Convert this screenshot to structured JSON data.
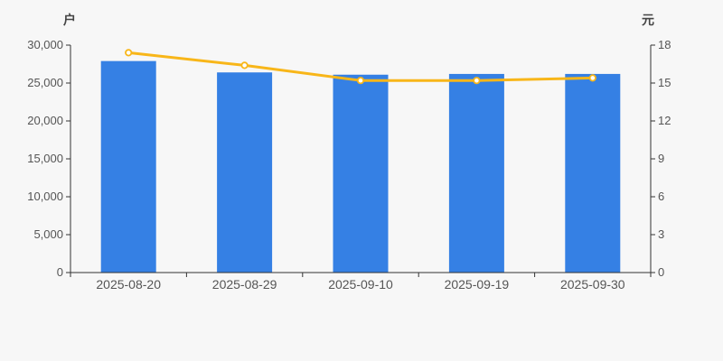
{
  "page": {
    "background": "#f7f7f7"
  },
  "chart_data": {
    "type": "bar",
    "subtype": "bar-with-line-dual-axis",
    "title": "",
    "legend": false,
    "grid": false,
    "categories": [
      "2025-08-20",
      "2025-08-29",
      "2025-09-10",
      "2025-09-19",
      "2025-09-30"
    ],
    "series": [
      {
        "name": "bar-series-left-axis",
        "type": "bar",
        "axis": "left",
        "values": [
          27900,
          26400,
          26100,
          26200,
          26200
        ],
        "color": "#3580e4"
      },
      {
        "name": "line-series-right-axis",
        "type": "line",
        "axis": "right",
        "values": [
          17.4,
          16.4,
          15.2,
          15.2,
          15.4
        ],
        "color": "#f8b619",
        "marker_fill": "#ffffff"
      }
    ],
    "left_axis": {
      "name": "户",
      "min": 0,
      "max": 30000,
      "tick_interval": 5000,
      "tick_labels": [
        "0",
        "5,000",
        "10,000",
        "15,000",
        "20,000",
        "25,000",
        "30,000"
      ]
    },
    "right_axis": {
      "name": "元",
      "min": 0,
      "max": 18,
      "tick_interval": 3,
      "tick_labels": [
        "0",
        "3",
        "6",
        "9",
        "12",
        "15",
        "18"
      ]
    },
    "styles": {
      "axis_line_color": "#333333",
      "tick_label_color": "#555555",
      "axis_name_color": "#444444"
    }
  }
}
